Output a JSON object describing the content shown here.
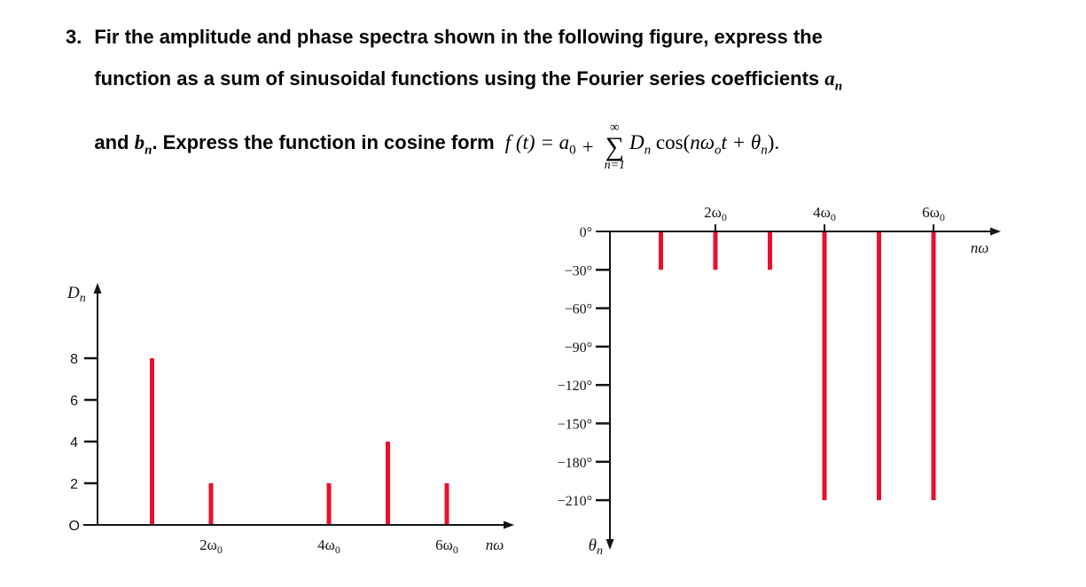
{
  "problem": {
    "number": "3.",
    "line1": "Fir the amplitude and phase spectra shown in the following figure, express the",
    "line2_text": "function as a sum of sinusoidal functions using the Fourier series coefficients ",
    "line2_var": "a",
    "line2_var_sub": "n",
    "line3_pre": "and ",
    "line3_var": "b",
    "line3_var_sub": "n",
    "line3_text": ". Express the function in cosine form",
    "formula": {
      "f_lhs": "f (t) = a",
      "a_sub": "0",
      "plus": "+",
      "sum_top": "∞",
      "sum_symbol": "∑",
      "sum_bottom": "n=1",
      "D": "D",
      "D_sub": "n",
      "cos_open": " cos(",
      "n_omega": "nω",
      "omega_sub": "o",
      "t_theta": "t + θ",
      "theta_sub": "n",
      "close": ")."
    }
  },
  "chart_data": [
    {
      "type": "stem",
      "id": "amplitude_spectrum",
      "ylabel": {
        "base": "D",
        "sub": "n"
      },
      "xlabel": "nω",
      "origin_label": "O",
      "y_ticks": [
        2,
        4,
        6,
        8
      ],
      "x_tick_labels": [
        {
          "n": 2,
          "base": "2ω",
          "sub": "0"
        },
        {
          "n": 4,
          "base": "4ω",
          "sub": "0"
        },
        {
          "n": 6,
          "base": "6ω",
          "sub": "0"
        }
      ],
      "stems": [
        {
          "n": 1,
          "value": 8
        },
        {
          "n": 2,
          "value": 2
        },
        {
          "n": 4,
          "value": 2
        },
        {
          "n": 5,
          "value": 4
        },
        {
          "n": 6,
          "value": 2
        }
      ],
      "x_unit": "multiples of ω0",
      "ylim": [
        0,
        9
      ],
      "stem_color": "#e8112d"
    },
    {
      "type": "stem",
      "id": "phase_spectrum",
      "ylabel": {
        "base": "θ",
        "sub": "n"
      },
      "xlabel": "nω",
      "y_unit": "degrees",
      "y_ticks_deg": [
        0,
        -30,
        -60,
        -90,
        -120,
        -150,
        -180,
        -210
      ],
      "y_tick_labels": [
        "0°",
        "−30°",
        "−60°",
        "−90°",
        "−120°",
        "−150°",
        "−180°",
        "−210°"
      ],
      "x_tick_labels": [
        {
          "n": 2,
          "base": "2ω",
          "sub": "0"
        },
        {
          "n": 4,
          "base": "4ω",
          "sub": "0"
        },
        {
          "n": 6,
          "base": "6ω",
          "sub": "0"
        }
      ],
      "stems": [
        {
          "n": 1,
          "value": -30
        },
        {
          "n": 2,
          "value": -30
        },
        {
          "n": 3,
          "value": -30
        },
        {
          "n": 4,
          "value": -210
        },
        {
          "n": 5,
          "value": -210
        },
        {
          "n": 6,
          "value": -210
        }
      ],
      "stem_color": "#e8112d"
    }
  ]
}
